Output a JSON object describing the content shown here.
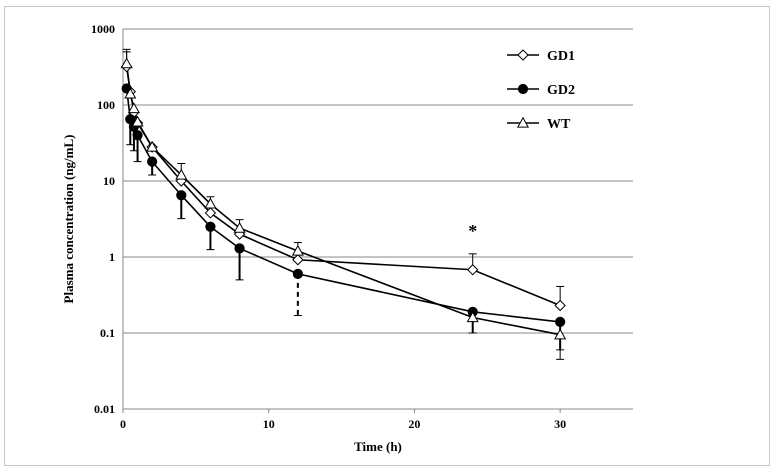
{
  "chart_data": {
    "type": "line",
    "xlabel": "Time (h)",
    "ylabel": "Plasma concentration (ng/mL)",
    "xlim": [
      0,
      35
    ],
    "ylim": [
      0.01,
      1000
    ],
    "yscale": "log",
    "xticks": [
      0,
      10,
      20,
      30
    ],
    "yticks": [
      0.01,
      0.1,
      1,
      10,
      100,
      1000
    ],
    "xtick_labels": [
      "0",
      "10",
      "20",
      "30"
    ],
    "ytick_labels": [
      "0.01",
      "0.1",
      "1",
      "10",
      "100",
      "1000"
    ],
    "grid": "horizontal",
    "legend_position": "top-right",
    "annotations": [
      {
        "text": "*",
        "x": 24,
        "y": 2.2
      }
    ],
    "series": [
      {
        "name": "GD1",
        "marker": "diamond-open",
        "x": [
          0.25,
          0.5,
          0.75,
          1,
          2,
          4,
          6,
          8,
          12,
          24,
          30
        ],
        "y": [
          320,
          150,
          80,
          58,
          28,
          10,
          3.8,
          2.0,
          0.92,
          0.68,
          0.23
        ],
        "err_up": [
          220,
          0,
          0,
          0,
          0,
          0,
          0,
          0,
          0,
          0.42,
          0.18
        ]
      },
      {
        "name": "GD2",
        "marker": "circle-filled",
        "x": [
          0.25,
          0.5,
          0.75,
          1,
          2,
          4,
          6,
          8,
          12,
          24,
          30
        ],
        "y": [
          165,
          65,
          52,
          40,
          18,
          6.5,
          2.5,
          1.3,
          0.6,
          0.19,
          0.14
        ],
        "err_up": [
          0,
          0,
          0,
          0,
          0,
          0,
          0,
          0,
          0,
          0,
          0
        ],
        "err_down": [
          0,
          35,
          27,
          22,
          6,
          3.3,
          1.25,
          0.8,
          0.43,
          0.09,
          0.08
        ]
      },
      {
        "name": "WT",
        "marker": "triangle-open",
        "x": [
          0.25,
          0.5,
          0.75,
          1,
          2,
          4,
          6,
          8,
          12,
          24,
          30
        ],
        "y": [
          350,
          140,
          90,
          60,
          28,
          12,
          5.0,
          2.4,
          1.2,
          0.16,
          0.095
        ],
        "err_up": [
          150,
          0,
          0,
          0,
          0,
          5,
          1.2,
          0.7,
          0.35,
          0,
          0
        ],
        "err_down": [
          0,
          0,
          0,
          0,
          0,
          0,
          0,
          0,
          0,
          0.06,
          0.05
        ]
      }
    ]
  }
}
